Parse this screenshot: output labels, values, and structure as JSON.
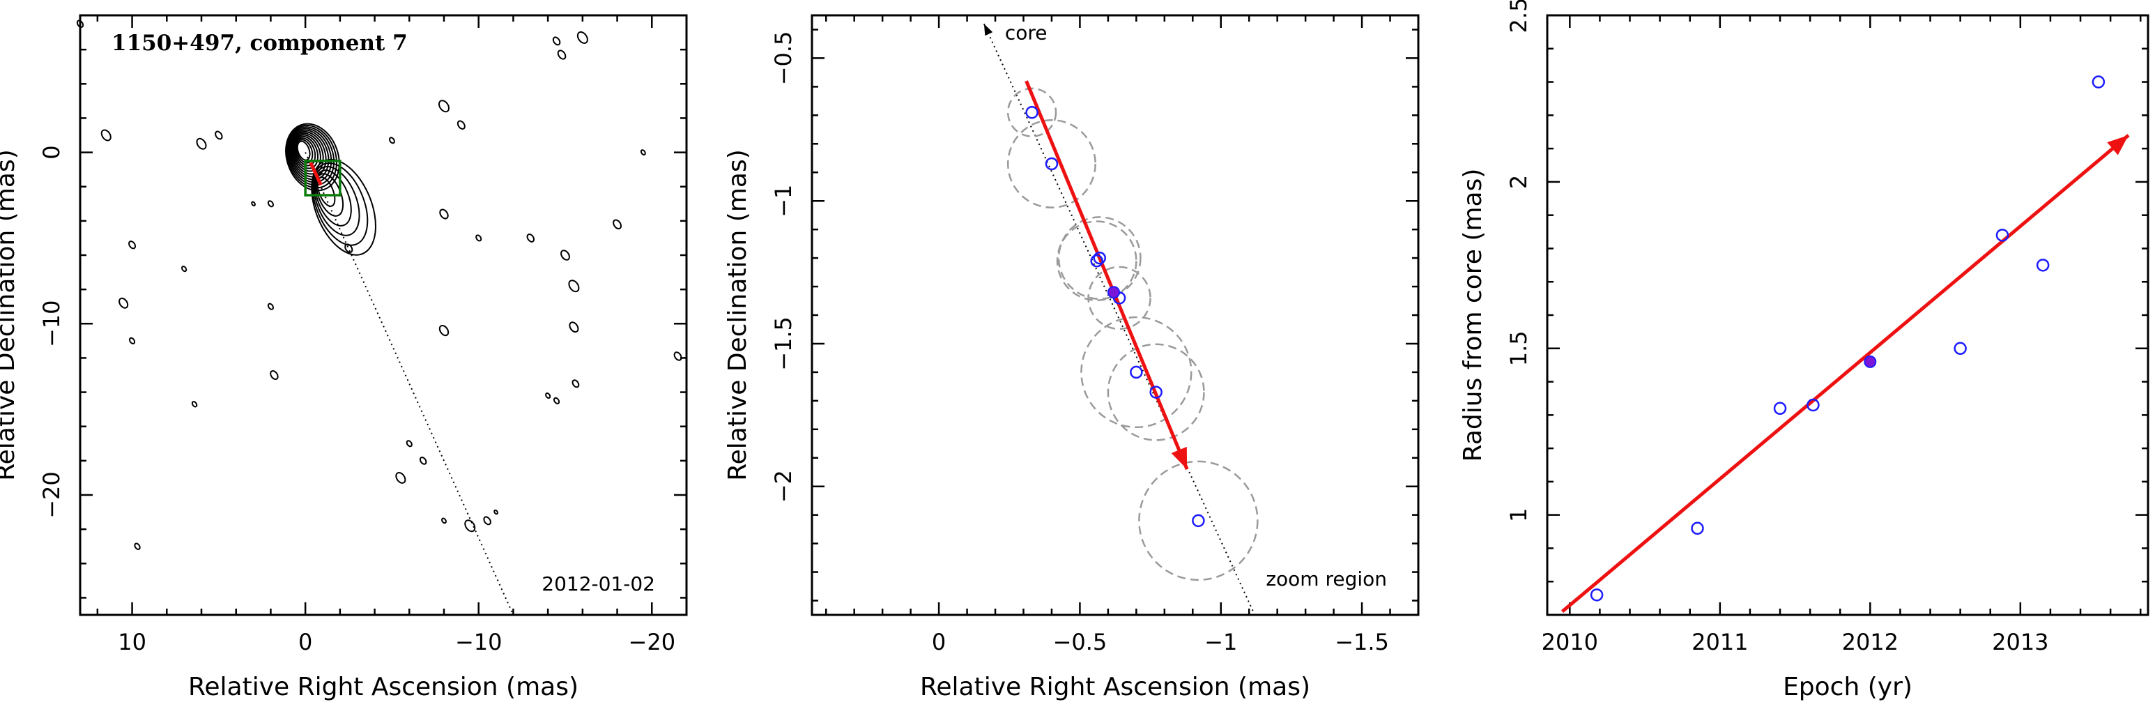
{
  "chart_data": [
    {
      "type": "contour",
      "title": "1150+497, component 7",
      "date_label": "2012-01-02",
      "xlabel": "Relative Right Ascension (mas)",
      "ylabel": "Relative Declination (mas)",
      "xlim": [
        13,
        -22
      ],
      "ylim": [
        -27,
        8
      ],
      "xticks": [
        10,
        0,
        -10,
        -20
      ],
      "yticks": [
        0,
        -10,
        -20
      ],
      "zoom_box": {
        "x": [
          0,
          -2
        ],
        "y": [
          -0.5,
          -2.5
        ]
      },
      "jet_line": {
        "from": [
          0,
          0
        ],
        "to": [
          -12,
          -27
        ]
      },
      "grid": false
    },
    {
      "type": "scatter",
      "xlabel": "Relative Right Ascension (mas)",
      "ylabel": "Relative Declination (mas)",
      "xlim": [
        0.45,
        -1.7
      ],
      "ylim": [
        -2.45,
        -0.35
      ],
      "xticks": [
        0,
        -0.5,
        -1,
        -1.5
      ],
      "yticks": [
        -0.5,
        -1,
        -1.5,
        -2
      ],
      "annotations": [
        "core",
        "zoom region"
      ],
      "points": [
        {
          "x": -0.33,
          "y": -0.69,
          "r": 0.085
        },
        {
          "x": -0.4,
          "y": -0.87,
          "r": 0.155
        },
        {
          "x": -0.57,
          "y": -1.2,
          "r": 0.145
        },
        {
          "x": -0.56,
          "y": -1.21,
          "r": 0.14
        },
        {
          "x": -0.64,
          "y": -1.34,
          "r": 0.11
        },
        {
          "x": -0.7,
          "y": -1.6,
          "r": 0.195
        },
        {
          "x": -0.77,
          "y": -1.67,
          "r": 0.17
        },
        {
          "x": -0.92,
          "y": -2.12,
          "r": 0.21
        }
      ],
      "highlight": {
        "x": -0.62,
        "y": -1.32
      },
      "fit_arrow": {
        "from": [
          -0.31,
          -0.58
        ],
        "to": [
          -0.88,
          -1.94
        ]
      },
      "core_arrow": {
        "from": [
          -0.62,
          -1.32
        ],
        "to": [
          -0.16,
          -0.38
        ]
      },
      "jet_line_end": [
        -1.12,
        -2.45
      ],
      "grid": false
    },
    {
      "type": "scatter",
      "xlabel": "Epoch (yr)",
      "ylabel": "Radius from core (mas)",
      "xlim": [
        2009.85,
        2013.85
      ],
      "ylim": [
        0.7,
        2.5
      ],
      "xticks": [
        2010,
        2011,
        2012,
        2013
      ],
      "yticks": [
        1,
        1.5,
        2,
        2.5
      ],
      "x": [
        2010.18,
        2010.85,
        2011.4,
        2011.62,
        2012.6,
        2012.88,
        2013.15,
        2013.52
      ],
      "y": [
        0.76,
        0.96,
        1.32,
        1.33,
        1.5,
        1.84,
        1.75,
        2.3
      ],
      "highlight": {
        "x": 2012.0,
        "y": 1.46
      },
      "fit_arrow": {
        "from": [
          2009.95,
          0.71
        ],
        "to": [
          2013.72,
          2.14
        ]
      },
      "grid": false
    }
  ]
}
